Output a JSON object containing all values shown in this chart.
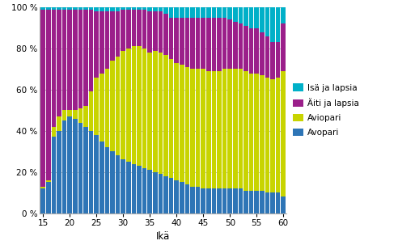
{
  "ages": [
    15,
    16,
    17,
    18,
    19,
    20,
    21,
    22,
    23,
    24,
    25,
    26,
    27,
    28,
    29,
    30,
    31,
    32,
    33,
    34,
    35,
    36,
    37,
    38,
    39,
    40,
    41,
    42,
    43,
    44,
    45,
    46,
    47,
    48,
    49,
    50,
    51,
    52,
    53,
    54,
    55,
    56,
    57,
    58,
    59,
    60
  ],
  "avopari": [
    12,
    15,
    37,
    40,
    45,
    47,
    46,
    44,
    42,
    40,
    38,
    35,
    32,
    30,
    28,
    26,
    25,
    24,
    23,
    22,
    21,
    20,
    19,
    18,
    17,
    16,
    15,
    14,
    13,
    13,
    12,
    12,
    12,
    12,
    12,
    12,
    12,
    12,
    11,
    11,
    11,
    11,
    10,
    10,
    10,
    8
  ],
  "aviopari": [
    1,
    1,
    5,
    7,
    5,
    3,
    4,
    7,
    10,
    19,
    28,
    33,
    38,
    44,
    48,
    53,
    55,
    57,
    58,
    58,
    57,
    59,
    59,
    59,
    58,
    57,
    57,
    57,
    57,
    57,
    58,
    57,
    57,
    57,
    58,
    58,
    58,
    58,
    58,
    57,
    57,
    56,
    56,
    55,
    56,
    61
  ],
  "aiti_ja_lapsia": [
    86,
    83,
    57,
    52,
    49,
    49,
    49,
    48,
    47,
    40,
    32,
    30,
    28,
    24,
    22,
    20,
    19,
    18,
    18,
    19,
    20,
    19,
    20,
    20,
    20,
    22,
    23,
    24,
    25,
    25,
    25,
    26,
    26,
    26,
    25,
    24,
    23,
    22,
    22,
    22,
    22,
    21,
    20,
    18,
    17,
    23
  ],
  "isa_ja_lapsia": [
    1,
    1,
    1,
    1,
    1,
    1,
    1,
    1,
    1,
    1,
    2,
    2,
    2,
    2,
    2,
    1,
    1,
    1,
    1,
    1,
    2,
    2,
    2,
    3,
    5,
    5,
    5,
    5,
    5,
    5,
    5,
    5,
    5,
    5,
    5,
    6,
    7,
    8,
    9,
    10,
    10,
    12,
    14,
    17,
    17,
    8
  ],
  "color_avopari": "#2e75b6",
  "color_aviopari": "#c8d400",
  "color_aiti": "#9b1f8a",
  "color_isa": "#00b0c8",
  "ylabel_ticks": [
    "0 %",
    "20 %",
    "40 %",
    "60 %",
    "80 %",
    "100 %"
  ],
  "ytick_vals": [
    0,
    20,
    40,
    60,
    80,
    100
  ],
  "xlabel": "Ikä",
  "legend_labels": [
    "Isä ja lapsia",
    "Äiti ja lapsia",
    "Aviopari",
    "Avopari"
  ],
  "background_color": "#ffffff",
  "grid_color": "#b0b0b0"
}
